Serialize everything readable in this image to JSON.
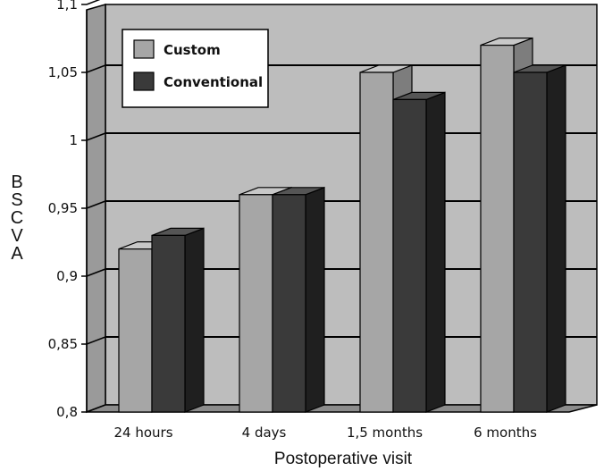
{
  "chart_data": {
    "type": "bar",
    "categories": [
      "24 hours",
      "4 days",
      "1,5 months",
      "6 months"
    ],
    "series": [
      {
        "name": "Custom",
        "values": [
          0.92,
          0.96,
          1.05,
          1.07
        ],
        "color": "#a6a6a6"
      },
      {
        "name": "Conventional",
        "values": [
          0.93,
          0.96,
          1.03,
          1.05
        ],
        "color": "#3a3a3a"
      }
    ],
    "yticks": [
      "0,8",
      "0,85",
      "0,9",
      "0,95",
      "1",
      "1,05",
      "1,1"
    ],
    "ylim": [
      0.8,
      1.1
    ],
    "xlabel": "Postoperative visit",
    "ylabel": "BSCVA",
    "legend_position": "top-left",
    "grid": true,
    "background_color": "#bdbdbd"
  }
}
